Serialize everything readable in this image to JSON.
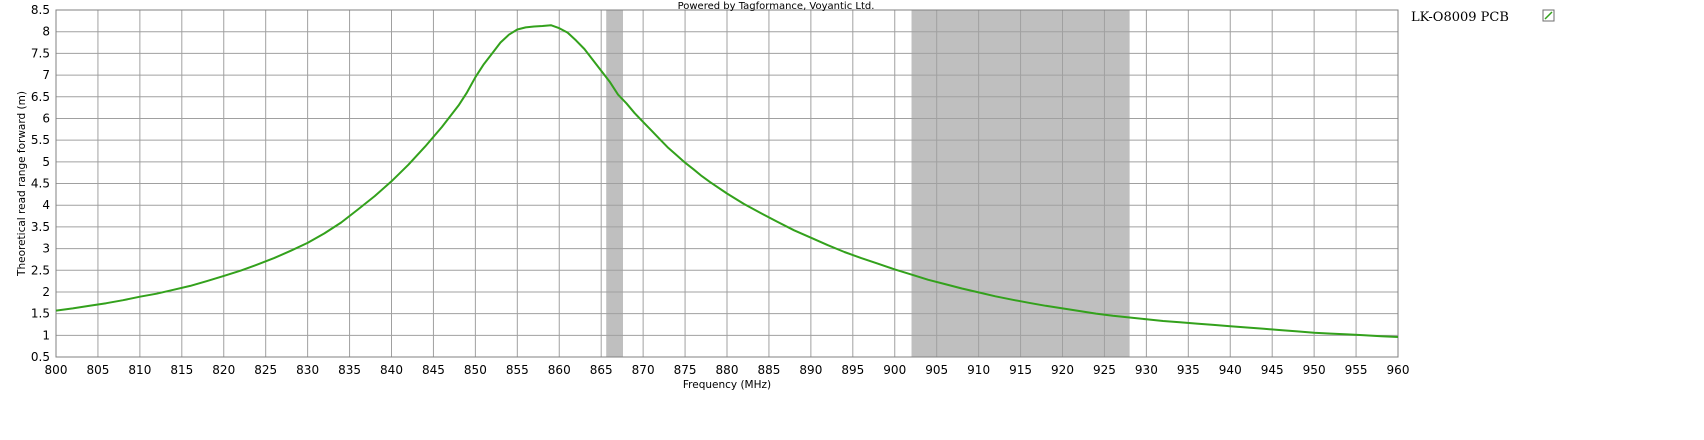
{
  "chart_data": {
    "type": "line",
    "credit": "Powered by Tagformance, Voyantic Ltd.",
    "xlabel": "Frequency (MHz)",
    "ylabel": "Theoretical read range forward (m)",
    "xlim": [
      800,
      960
    ],
    "ylim": [
      0.5,
      8.5
    ],
    "x_ticks": [
      "800",
      "805",
      "810",
      "815",
      "820",
      "825",
      "830",
      "835",
      "840",
      "845",
      "850",
      "855",
      "860",
      "865",
      "870",
      "875",
      "880",
      "885",
      "890",
      "895",
      "900",
      "905",
      "910",
      "915",
      "920",
      "925",
      "930",
      "935",
      "940",
      "945",
      "950",
      "955",
      "960"
    ],
    "y_ticks": [
      "0.5",
      "1",
      "1.5",
      "2",
      "2.5",
      "3",
      "3.5",
      "4",
      "4.5",
      "5",
      "5.5",
      "6",
      "6.5",
      "7",
      "7.5",
      "8",
      "8.5"
    ],
    "grid": true,
    "legend_position": "right",
    "shaded_bands": [
      {
        "x_start": 865.6,
        "x_end": 867.6,
        "color": "#bfbfbf"
      },
      {
        "x_start": 902,
        "x_end": 928,
        "color": "#bfbfbf"
      }
    ],
    "series": [
      {
        "name": "LK-O8009 PCB",
        "color": "#33a11c",
        "x": [
          800,
          802,
          804,
          806,
          808,
          810,
          812,
          814,
          816,
          818,
          820,
          822,
          824,
          826,
          828,
          830,
          832,
          834,
          836,
          838,
          840,
          842,
          844,
          846,
          848,
          849,
          850,
          851,
          852,
          853,
          854,
          855,
          856,
          857,
          858,
          859,
          860,
          861,
          862,
          863,
          864,
          865,
          866,
          867,
          868,
          869,
          870,
          871,
          872,
          873,
          874,
          875,
          876,
          877,
          878,
          880,
          882,
          884,
          886,
          888,
          890,
          892,
          894,
          896,
          898,
          900,
          902,
          904,
          906,
          908,
          910,
          912,
          914,
          916,
          918,
          920,
          922,
          924,
          926,
          928,
          930,
          932,
          934,
          936,
          938,
          940,
          942,
          944,
          946,
          948,
          950,
          952,
          954,
          956,
          958,
          960
        ],
        "values": [
          1.57,
          1.62,
          1.68,
          1.74,
          1.81,
          1.89,
          1.96,
          2.05,
          2.14,
          2.25,
          2.37,
          2.49,
          2.63,
          2.78,
          2.95,
          3.13,
          3.35,
          3.6,
          3.9,
          4.21,
          4.55,
          4.93,
          5.35,
          5.8,
          6.3,
          6.6,
          6.95,
          7.25,
          7.5,
          7.75,
          7.93,
          8.05,
          8.1,
          8.12,
          8.13,
          8.15,
          8.08,
          7.98,
          7.8,
          7.6,
          7.35,
          7.1,
          6.85,
          6.55,
          6.35,
          6.12,
          5.92,
          5.72,
          5.52,
          5.32,
          5.15,
          4.98,
          4.83,
          4.67,
          4.53,
          4.27,
          4.03,
          3.82,
          3.62,
          3.42,
          3.25,
          3.08,
          2.92,
          2.78,
          2.65,
          2.52,
          2.4,
          2.28,
          2.18,
          2.08,
          1.99,
          1.9,
          1.82,
          1.75,
          1.68,
          1.62,
          1.56,
          1.5,
          1.45,
          1.41,
          1.37,
          1.33,
          1.3,
          1.27,
          1.24,
          1.21,
          1.18,
          1.15,
          1.12,
          1.09,
          1.06,
          1.04,
          1.02,
          1.0,
          0.98,
          0.96
        ]
      }
    ]
  }
}
